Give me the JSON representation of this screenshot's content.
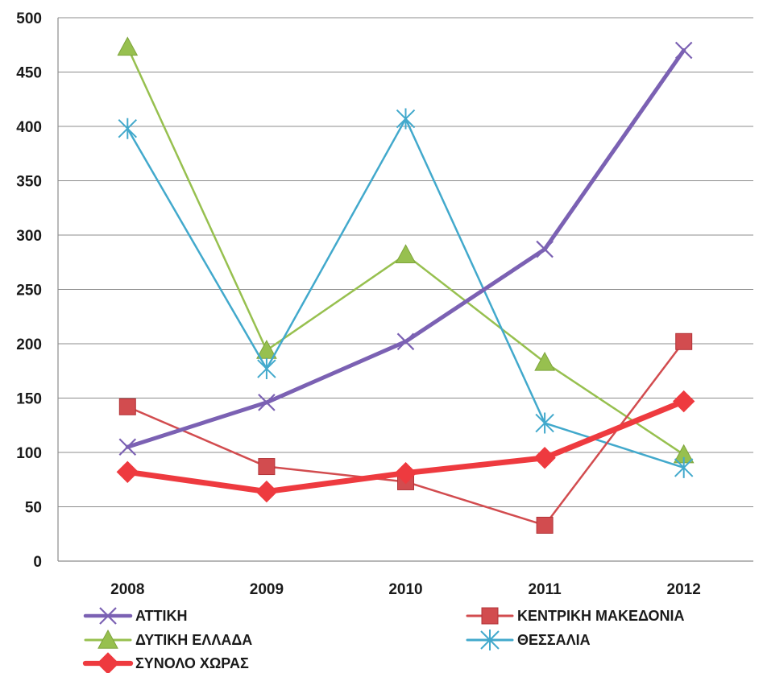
{
  "chart_data": {
    "type": "line",
    "title": "",
    "xlabel": "",
    "ylabel": "",
    "categories": [
      "2008",
      "2009",
      "2010",
      "2011",
      "2012"
    ],
    "ylim": [
      0,
      500
    ],
    "yticks": [
      0,
      50,
      100,
      150,
      200,
      250,
      300,
      350,
      400,
      450,
      500
    ],
    "grid": "horizontal",
    "legend_position": "bottom",
    "series": [
      {
        "name": "ΑΤΤΙΚΗ",
        "values": [
          105,
          146,
          202,
          287,
          470
        ],
        "color": "#7b61b3",
        "marker": "x",
        "width": 5
      },
      {
        "name": "ΚΕΝΤΡΙΚΗ ΜΑΚΕΔΟΝΙΑ",
        "values": [
          142,
          87,
          73,
          33,
          202
        ],
        "color": "#d24c4f",
        "marker": "square",
        "width": 2.5
      },
      {
        "name": "ΔΥΤΙΚΗ ΕΛΛΑΔΑ",
        "values": [
          473,
          194,
          282,
          183,
          98
        ],
        "color": "#97c04f",
        "marker": "triangle",
        "width": 2.5
      },
      {
        "name": "ΘΕΣΣΑΛΙΑ",
        "values": [
          398,
          177,
          407,
          127,
          86
        ],
        "color": "#42a9cc",
        "marker": "asterisk",
        "width": 2.5
      },
      {
        "name": "ΣΥΝΟΛΟ ΧΩΡΑΣ",
        "values": [
          82,
          64,
          81,
          95,
          147
        ],
        "color": "#ee3a3f",
        "marker": "diamond",
        "width": 7
      }
    ]
  }
}
